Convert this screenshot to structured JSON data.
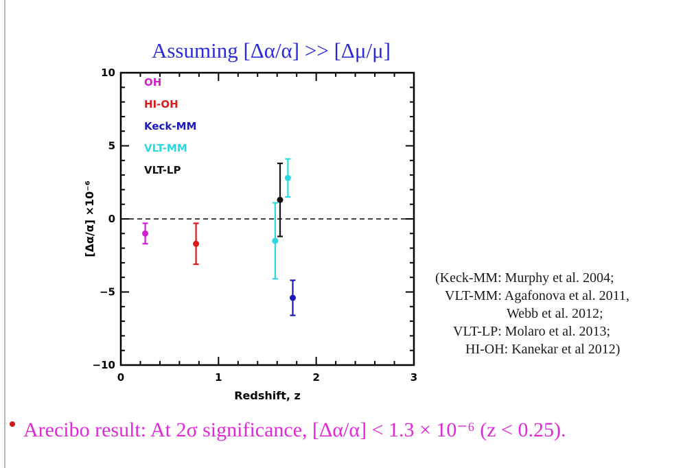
{
  "slide": {
    "title": "Assuming [Δα/α] >> [Δμ/μ]",
    "title_color": "#2b2bd8",
    "references": [
      "(Keck-MM: Murphy et al. 2004;",
      "VLT-MM: Agafonova et al. 2011,",
      "Webb et al. 2012;",
      "VLT-LP: Molaro et al. 2013;",
      "HI-OH: Kanekar et al 2012)"
    ],
    "bottom_text": "Arecibo result: At 2σ significance, [Δα/α]  <  1.3 × 10⁻⁶    (z < 0.25).",
    "bottom_color": "#e028d8"
  },
  "chart_data": {
    "type": "scatter",
    "xlabel": "Redshift, z",
    "ylabel": "[Δα/α] ×10⁻⁶",
    "xlim": [
      0,
      3
    ],
    "ylim": [
      -10,
      10
    ],
    "xticks": [
      0,
      1,
      2,
      3
    ],
    "yticks": [
      -10,
      -5,
      0,
      5,
      10
    ],
    "grid": false,
    "reference_line": {
      "y": 0,
      "style": "dashed"
    },
    "legend_position": "top-left",
    "series": [
      {
        "name": "OH",
        "color": "#d020d0",
        "points": [
          {
            "x": 0.25,
            "y": -1.0,
            "err": 0.7
          }
        ]
      },
      {
        "name": "HI-OH",
        "color": "#dd1a1a",
        "points": [
          {
            "x": 0.77,
            "y": -1.7,
            "err": 1.4
          }
        ]
      },
      {
        "name": "Keck-MM",
        "color": "#1a1ab8",
        "points": [
          {
            "x": 1.76,
            "y": -5.4,
            "err": 1.2
          }
        ]
      },
      {
        "name": "VLT-MM",
        "color": "#2cd8e0",
        "points": [
          {
            "x": 1.58,
            "y": -1.5,
            "err": 2.6
          },
          {
            "x": 1.71,
            "y": 2.8,
            "err": 1.3
          }
        ]
      },
      {
        "name": "VLT-LP",
        "color": "#111111",
        "points": [
          {
            "x": 1.63,
            "y": 1.3,
            "err": 2.5
          }
        ]
      }
    ]
  }
}
